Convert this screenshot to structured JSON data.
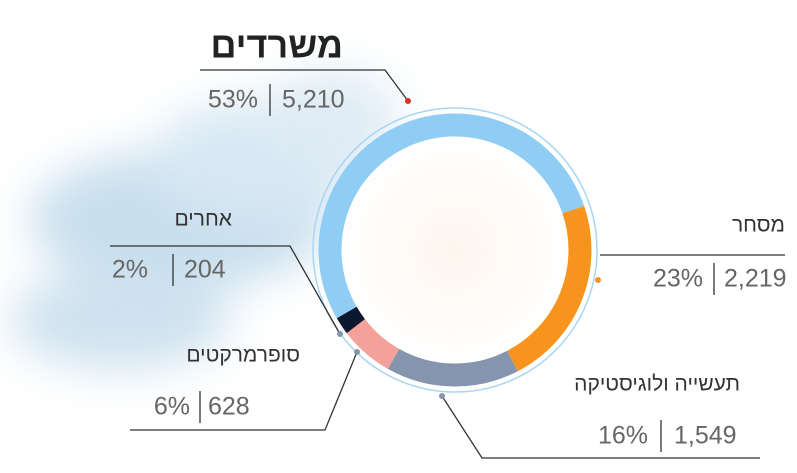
{
  "chart_data": {
    "type": "donut",
    "categories": [
      "משרדים",
      "מסחר",
      "תעשייה ולוגיסטיקה",
      "סופרמרקטים",
      "אחרים"
    ],
    "values": [
      5210,
      2219,
      1549,
      628,
      204
    ],
    "value_labels": [
      "5,210",
      "2,219",
      "1,549",
      "628",
      "204"
    ],
    "percents": [
      53,
      23,
      16,
      6,
      2
    ],
    "percent_labels": [
      "53%",
      "23%",
      "16%",
      "6%",
      "2%"
    ],
    "colors": [
      "#8fcdf4",
      "#f7941d",
      "#8595ad",
      "#f4a19b",
      "#0c1830"
    ]
  }
}
